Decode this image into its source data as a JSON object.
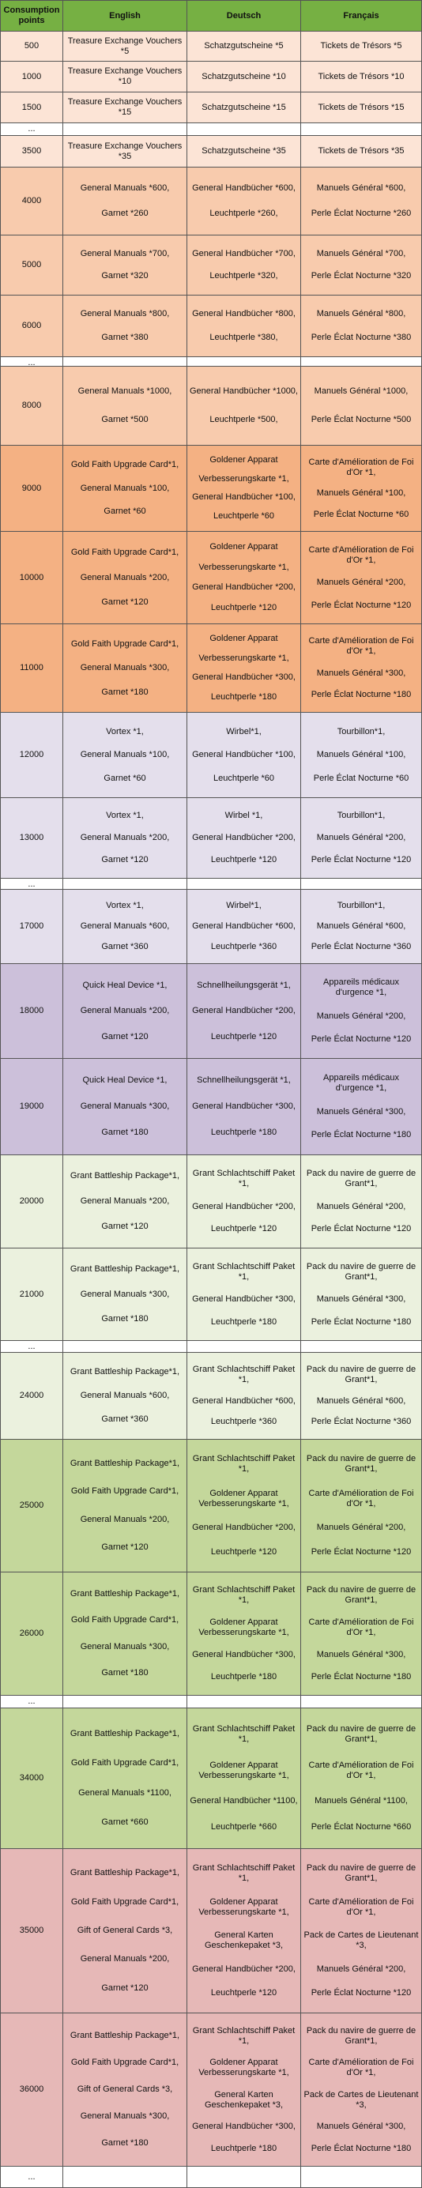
{
  "header": [
    "Consumption points",
    "English",
    "Deutsch",
    "Français"
  ],
  "rows": [
    {
      "points": 500,
      "en": [
        "Treasure Exchange Vouchers *5"
      ],
      "de": [
        "Schatzgutscheine *5"
      ],
      "fr": [
        "Tickets de Trésors *5"
      ]
    },
    {
      "points": 1000,
      "en": [
        "Treasure Exchange Vouchers *10"
      ],
      "de": [
        "Schatzgutscheine *10"
      ],
      "fr": [
        "Tickets de Trésors *10"
      ]
    },
    {
      "points": 1500,
      "en": [
        "Treasure Exchange Vouchers *15"
      ],
      "de": [
        "Schatzgutscheine *15"
      ],
      "fr": [
        "Tickets de Trésors *15"
      ]
    },
    {
      "points": "..."
    },
    {
      "points": 3500,
      "en": [
        "Treasure Exchange Vouchers *35"
      ],
      "de": [
        "Schatzgutscheine *35"
      ],
      "fr": [
        "Tickets de Trésors *35"
      ]
    },
    {
      "points": 4000,
      "en": [
        "General Manuals *600,",
        "Garnet *260"
      ],
      "de": [
        "General Handbücher *600,",
        "Leuchtperle *260,"
      ],
      "fr": [
        "Manuels Général *600,",
        "Perle Éclat Nocturne *260"
      ]
    },
    {
      "points": 5000,
      "en": [
        "General Manuals *700,",
        "Garnet *320"
      ],
      "de": [
        "General Handbücher *700,",
        "Leuchtperle *320,"
      ],
      "fr": [
        "Manuels Général *700,",
        "Perle Éclat Nocturne *320"
      ]
    },
    {
      "points": 6000,
      "en": [
        "General Manuals *800,",
        "Garnet *380"
      ],
      "de": [
        "General Handbücher *800,",
        "Leuchtperle *380,"
      ],
      "fr": [
        "Manuels Général *800,",
        "Perle Éclat Nocturne *380"
      ]
    },
    {
      "points": "..."
    },
    {
      "points": 8000,
      "en": [
        "General Manuals *1000,",
        "Garnet *500"
      ],
      "de": [
        "General Handbücher *1000,",
        "Leuchtperle *500,"
      ],
      "fr": [
        "Manuels Général *1000,",
        "Perle Éclat Nocturne *500"
      ]
    },
    {
      "points": 9000,
      "en": [
        "Gold Faith Upgrade Card*1,",
        "General Manuals *100,",
        "Garnet *60"
      ],
      "de": [
        "Goldener Apparat",
        "Verbesserungskarte *1,",
        "General Handbücher *100,",
        "Leuchtperle *60"
      ],
      "fr": [
        "Carte d'Amélioration de Foi d'Or *1,",
        "Manuels Général *100,",
        "Perle Éclat Nocturne *60"
      ]
    },
    {
      "points": 10000,
      "en": [
        "Gold Faith Upgrade Card*1,",
        "General Manuals *200,",
        "Garnet *120"
      ],
      "de": [
        "Goldener Apparat",
        "Verbesserungskarte *1,",
        "General Handbücher *200,",
        "Leuchtperle *120"
      ],
      "fr": [
        "Carte d'Amélioration de Foi d'Or *1,",
        "Manuels Général *200,",
        "Perle Éclat Nocturne *120"
      ]
    },
    {
      "points": 11000,
      "en": [
        "Gold Faith Upgrade Card*1,",
        "General Manuals *300,",
        "Garnet *180"
      ],
      "de": [
        "Goldener Apparat",
        "Verbesserungskarte *1,",
        "General Handbücher *300,",
        "Leuchtperle *180"
      ],
      "fr": [
        "Carte d'Amélioration de Foi d'Or *1,",
        "Manuels Général *300,",
        "Perle Éclat Nocturne *180"
      ]
    },
    {
      "points": 12000,
      "en": [
        "Vortex *1,",
        "General Manuals *100,",
        "Garnet *60"
      ],
      "de": [
        "Wirbel*1,",
        "General Handbücher *100,",
        "Leuchtperle *60"
      ],
      "fr": [
        "Tourbillon*1,",
        "Manuels Général *100,",
        "Perle Éclat Nocturne *60"
      ]
    },
    {
      "points": 13000,
      "en": [
        "Vortex *1,",
        "General Manuals *200,",
        "Garnet *120"
      ],
      "de": [
        "Wirbel *1,",
        "General Handbücher *200,",
        "Leuchtperle *120"
      ],
      "fr": [
        "Tourbillon*1,",
        "Manuels Général *200,",
        "Perle Éclat Nocturne *120"
      ]
    },
    {
      "points": "..."
    },
    {
      "points": 17000,
      "en": [
        "Vortex *1,",
        "General Manuals *600,",
        "Garnet *360"
      ],
      "de": [
        "Wirbel*1,",
        "General Handbücher *600,",
        "Leuchtperle *360"
      ],
      "fr": [
        "Tourbillon*1,",
        "Manuels Général *600,",
        "Perle Éclat Nocturne *360"
      ]
    },
    {
      "points": 18000,
      "en": [
        "Quick Heal Device *1,",
        "General Manuals *200,",
        "Garnet *120"
      ],
      "de": [
        "Schnellheilungsgerät *1,",
        "General Handbücher *200,",
        "Leuchtperle *120"
      ],
      "fr": [
        "Appareils médicaux d'urgence *1,",
        "Manuels Général *200,",
        "Perle Éclat Nocturne *120"
      ]
    },
    {
      "points": 19000,
      "en": [
        "Quick Heal Device *1,",
        "General Manuals *300,",
        "Garnet *180"
      ],
      "de": [
        "Schnellheilungsgerät *1,",
        "General Handbücher *300,",
        "Leuchtperle *180"
      ],
      "fr": [
        "Appareils médicaux d'urgence *1,",
        "Manuels Général *300,",
        "Perle Éclat Nocturne *180"
      ]
    },
    {
      "points": 20000,
      "en": [
        "Grant Battleship Package*1,",
        "General Manuals *200,",
        "Garnet *120"
      ],
      "de": [
        "Grant Schlachtschiff Paket *1,",
        "General Handbücher *200,",
        "Leuchtperle *120"
      ],
      "fr": [
        "Pack du navire de guerre de Grant*1,",
        "Manuels Général *200,",
        "Perle Éclat Nocturne *120"
      ]
    },
    {
      "points": 21000,
      "en": [
        "Grant Battleship Package*1,",
        "General Manuals *300,",
        "Garnet *180"
      ],
      "de": [
        "Grant Schlachtschiff Paket *1,",
        "General Handbücher *300,",
        "Leuchtperle *180"
      ],
      "fr": [
        "Pack du navire de guerre de Grant*1,",
        "Manuels Général *300,",
        "Perle Éclat Nocturne *180"
      ]
    },
    {
      "points": "..."
    },
    {
      "points": 24000,
      "en": [
        "Grant Battleship Package*1,",
        "General Manuals *600,",
        "Garnet *360"
      ],
      "de": [
        "Grant Schlachtschiff Paket *1,",
        "General Handbücher *600,",
        "Leuchtperle *360"
      ],
      "fr": [
        "Pack du navire de guerre de Grant*1,",
        "Manuels Général *600,",
        "Perle Éclat Nocturne *360"
      ]
    },
    {
      "points": 25000,
      "en": [
        "Grant Battleship Package*1,",
        "Gold Faith Upgrade Card*1,",
        "General Manuals *200,",
        "Garnet *120"
      ],
      "de": [
        "Grant Schlachtschiff Paket *1,",
        "Goldener Apparat Verbesserungskarte *1,",
        "General Handbücher *200,",
        "Leuchtperle *120"
      ],
      "fr": [
        "Pack du navire de guerre de Grant*1,",
        "Carte d'Amélioration de Foi d'Or *1,",
        "Manuels Général *200,",
        "Perle Éclat Nocturne *120"
      ]
    },
    {
      "points": 26000,
      "en": [
        "Grant Battleship Package*1,",
        "Gold Faith Upgrade Card*1,",
        "General Manuals *300,",
        "Garnet *180"
      ],
      "de": [
        "Grant Schlachtschiff Paket *1,",
        "Goldener Apparat Verbesserungskarte *1,",
        "General Handbücher *300,",
        "Leuchtperle *180"
      ],
      "fr": [
        "Pack du navire de guerre de Grant*1,",
        "Carte d'Amélioration de Foi d'Or *1,",
        "Manuels Général *300,",
        "Perle Éclat Nocturne *180"
      ]
    },
    {
      "points": "..."
    },
    {
      "points": 34000,
      "en": [
        "Grant Battleship Package*1,",
        "Gold Faith Upgrade Card*1,",
        "General Manuals *1100,",
        "Garnet *660"
      ],
      "de": [
        "Grant Schlachtschiff Paket *1,",
        "Goldener Apparat Verbesserungskarte *1,",
        "General Handbücher *1100,",
        "Leuchtperle *660"
      ],
      "fr": [
        "Pack du navire de guerre de Grant*1,",
        "Carte d'Amélioration de Foi d'Or *1,",
        "Manuels Général *1100,",
        "Perle Éclat Nocturne *660"
      ]
    },
    {
      "points": 35000,
      "en": [
        "Grant Battleship Package*1,",
        "Gold Faith Upgrade Card*1,",
        "Gift of General Cards *3,",
        "General Manuals *200,",
        "Garnet *120"
      ],
      "de": [
        "Grant Schlachtschiff Paket *1,",
        "Goldener Apparat Verbesserungskarte *1,",
        "General Karten Geschenkepaket *3,",
        "General Handbücher *200,",
        "Leuchtperle *120"
      ],
      "fr": [
        "Pack du navire de guerre de Grant*1,",
        "Carte d'Amélioration de Foi d'Or *1,",
        "Pack de Cartes de Lieutenant *3,",
        "Manuels Général *200,",
        "Perle Éclat Nocturne *120"
      ]
    },
    {
      "points": 36000,
      "en": [
        "Grant Battleship Package*1,",
        "Gold Faith Upgrade Card*1,",
        "Gift of General Cards *3,",
        "General Manuals *300,",
        "Garnet *180"
      ],
      "de": [
        "Grant Schlachtschiff Paket *1,",
        "Goldener Apparat Verbesserungskarte *1,",
        "General Karten Geschenkepaket *3,",
        "General Handbücher *300,",
        "Leuchtperle *180"
      ],
      "fr": [
        "Pack du navire de guerre de Grant*1,",
        "Carte d'Amélioration de Foi d'Or *1,",
        "Pack de Cartes de Lieutenant *3,",
        "Manuels Général *300,",
        "Perle Éclat Nocturne *180"
      ]
    },
    {
      "points": "..."
    }
  ]
}
